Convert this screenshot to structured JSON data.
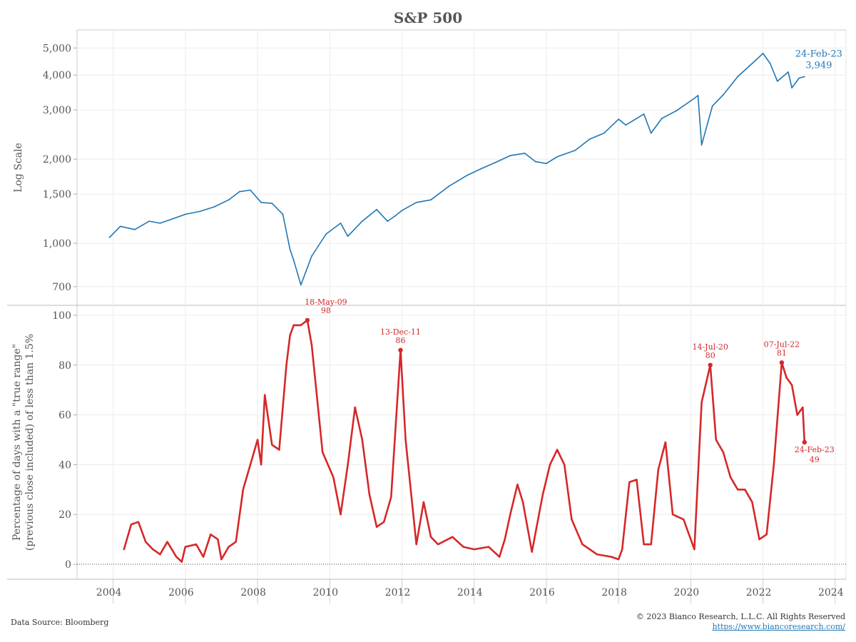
{
  "page_title": "S&P 500",
  "chart_data": [
    {
      "type": "line",
      "title": "S&P 500",
      "ylabel": "Log Scale",
      "yscale": "log",
      "ylim": [
        600,
        5800
      ],
      "yticks": [
        700,
        1000,
        1500,
        2000,
        3000,
        4000,
        5000
      ],
      "ytick_labels": [
        "700",
        "1,000",
        "1,500",
        "2,000",
        "3,000",
        "4,000",
        "5,000"
      ],
      "color": "#1f77b4",
      "series": [
        {
          "name": "S&P 500",
          "x": [
            2003.9,
            2004.2,
            2004.6,
            2005.0,
            2005.3,
            2005.7,
            2006.0,
            2006.4,
            2006.8,
            2007.2,
            2007.5,
            2007.8,
            2008.1,
            2008.4,
            2008.7,
            2008.9,
            2009.0,
            2009.2,
            2009.5,
            2009.9,
            2010.3,
            2010.5,
            2010.9,
            2011.3,
            2011.6,
            2011.8,
            2012.0,
            2012.4,
            2012.8,
            2013.3,
            2013.8,
            2014.2,
            2014.6,
            2015.0,
            2015.4,
            2015.7,
            2016.0,
            2016.3,
            2016.8,
            2017.2,
            2017.6,
            2018.0,
            2018.2,
            2018.7,
            2018.9,
            2019.2,
            2019.6,
            2020.1,
            2020.2,
            2020.3,
            2020.6,
            2020.9,
            2021.3,
            2021.7,
            2022.0,
            2022.2,
            2022.4,
            2022.7,
            2022.8,
            2023.0,
            2023.15
          ],
          "y": [
            1050,
            1150,
            1120,
            1200,
            1180,
            1230,
            1270,
            1300,
            1350,
            1430,
            1530,
            1550,
            1400,
            1390,
            1270,
            950,
            870,
            710,
            900,
            1080,
            1180,
            1060,
            1200,
            1320,
            1200,
            1250,
            1310,
            1400,
            1430,
            1600,
            1750,
            1850,
            1950,
            2060,
            2100,
            1960,
            1930,
            2040,
            2150,
            2360,
            2480,
            2780,
            2650,
            2900,
            2480,
            2800,
            2980,
            3300,
            3380,
            2250,
            3100,
            3400,
            3950,
            4400,
            4780,
            4400,
            3800,
            4100,
            3600,
            3900,
            3949
          ]
        }
      ],
      "annotations": [
        {
          "date": "24-Feb-23",
          "value": "3,949"
        }
      ]
    },
    {
      "type": "line",
      "ylabel": "Percentage of days with a \"true range\" (previous close included) of less than 1.5%",
      "ylabel_lines": [
        "Percentage of days with a \"true range\"",
        "(previous close included) of less than 1.5%"
      ],
      "ylim": [
        -6,
        104
      ],
      "yticks": [
        0,
        20,
        40,
        60,
        80,
        100
      ],
      "ytick_labels": [
        "0",
        "20",
        "40",
        "60",
        "80",
        "100"
      ],
      "xticks": [
        2004,
        2006,
        2008,
        2010,
        2012,
        2014,
        2016,
        2018,
        2020,
        2022,
        2024
      ],
      "xtick_labels": [
        "2004",
        "2006",
        "2008",
        "2010",
        "2012",
        "2014",
        "2016",
        "2018",
        "2020",
        "2022",
        "2024"
      ],
      "xlim": [
        2003.0,
        2024.3
      ],
      "color": "#d62728",
      "series": [
        {
          "name": "Pct days true range < 1.5%",
          "x": [
            2004.3,
            2004.5,
            2004.7,
            2004.9,
            2005.1,
            2005.3,
            2005.5,
            2005.75,
            2005.9,
            2006.0,
            2006.3,
            2006.5,
            2006.7,
            2006.9,
            2007.0,
            2007.2,
            2007.4,
            2007.6,
            2007.9,
            2008.0,
            2008.1,
            2008.2,
            2008.4,
            2008.6,
            2008.8,
            2008.9,
            2009.0,
            2009.1,
            2009.2,
            2009.38,
            2009.5,
            2009.8,
            2010.1,
            2010.3,
            2010.5,
            2010.7,
            2010.9,
            2011.1,
            2011.3,
            2011.5,
            2011.7,
            2011.96,
            2012.1,
            2012.4,
            2012.6,
            2012.8,
            2013.0,
            2013.4,
            2013.7,
            2014.0,
            2014.4,
            2014.7,
            2014.85,
            2015.0,
            2015.2,
            2015.35,
            2015.6,
            2015.9,
            2016.1,
            2016.3,
            2016.5,
            2016.7,
            2017.0,
            2017.4,
            2017.8,
            2018.0,
            2018.1,
            2018.3,
            2018.5,
            2018.7,
            2018.9,
            2019.1,
            2019.3,
            2019.5,
            2019.8,
            2020.1,
            2020.3,
            2020.54,
            2020.7,
            2020.9,
            2021.1,
            2021.3,
            2021.5,
            2021.7,
            2021.9,
            2022.1,
            2022.3,
            2022.52,
            2022.65,
            2022.8,
            2022.95,
            2023.1,
            2023.15
          ],
          "y": [
            6,
            16,
            17,
            9,
            6,
            4,
            9,
            3,
            1,
            7,
            8,
            3,
            12,
            10,
            2,
            7,
            9,
            30,
            45,
            50,
            40,
            68,
            48,
            46,
            80,
            92,
            96,
            96,
            96,
            98,
            88,
            45,
            35,
            20,
            40,
            63,
            50,
            28,
            15,
            17,
            27,
            86,
            50,
            8,
            25,
            11,
            8,
            11,
            7,
            6,
            7,
            3,
            10,
            20,
            32,
            25,
            5,
            28,
            40,
            46,
            40,
            18,
            8,
            4,
            3,
            2,
            6,
            33,
            34,
            8,
            8,
            38,
            49,
            20,
            18,
            6,
            65,
            80,
            50,
            45,
            35,
            30,
            30,
            25,
            10,
            12,
            40,
            81,
            75,
            72,
            60,
            63,
            49
          ]
        }
      ],
      "annotations": [
        {
          "date": "18-May-09",
          "value": "98"
        },
        {
          "date": "13-Dec-11",
          "value": "86"
        },
        {
          "date": "14-Jul-20",
          "value": "80"
        },
        {
          "date": "07-Jul-22",
          "value": "81"
        },
        {
          "date": "24-Feb-23",
          "value": "49"
        }
      ]
    }
  ],
  "footer": {
    "source": "Data Source: Bloomberg",
    "copyright": "© 2023 Bianco Research, L.L.C. All Rights Reserved",
    "url": "https://www.biancoresearch.com/"
  }
}
